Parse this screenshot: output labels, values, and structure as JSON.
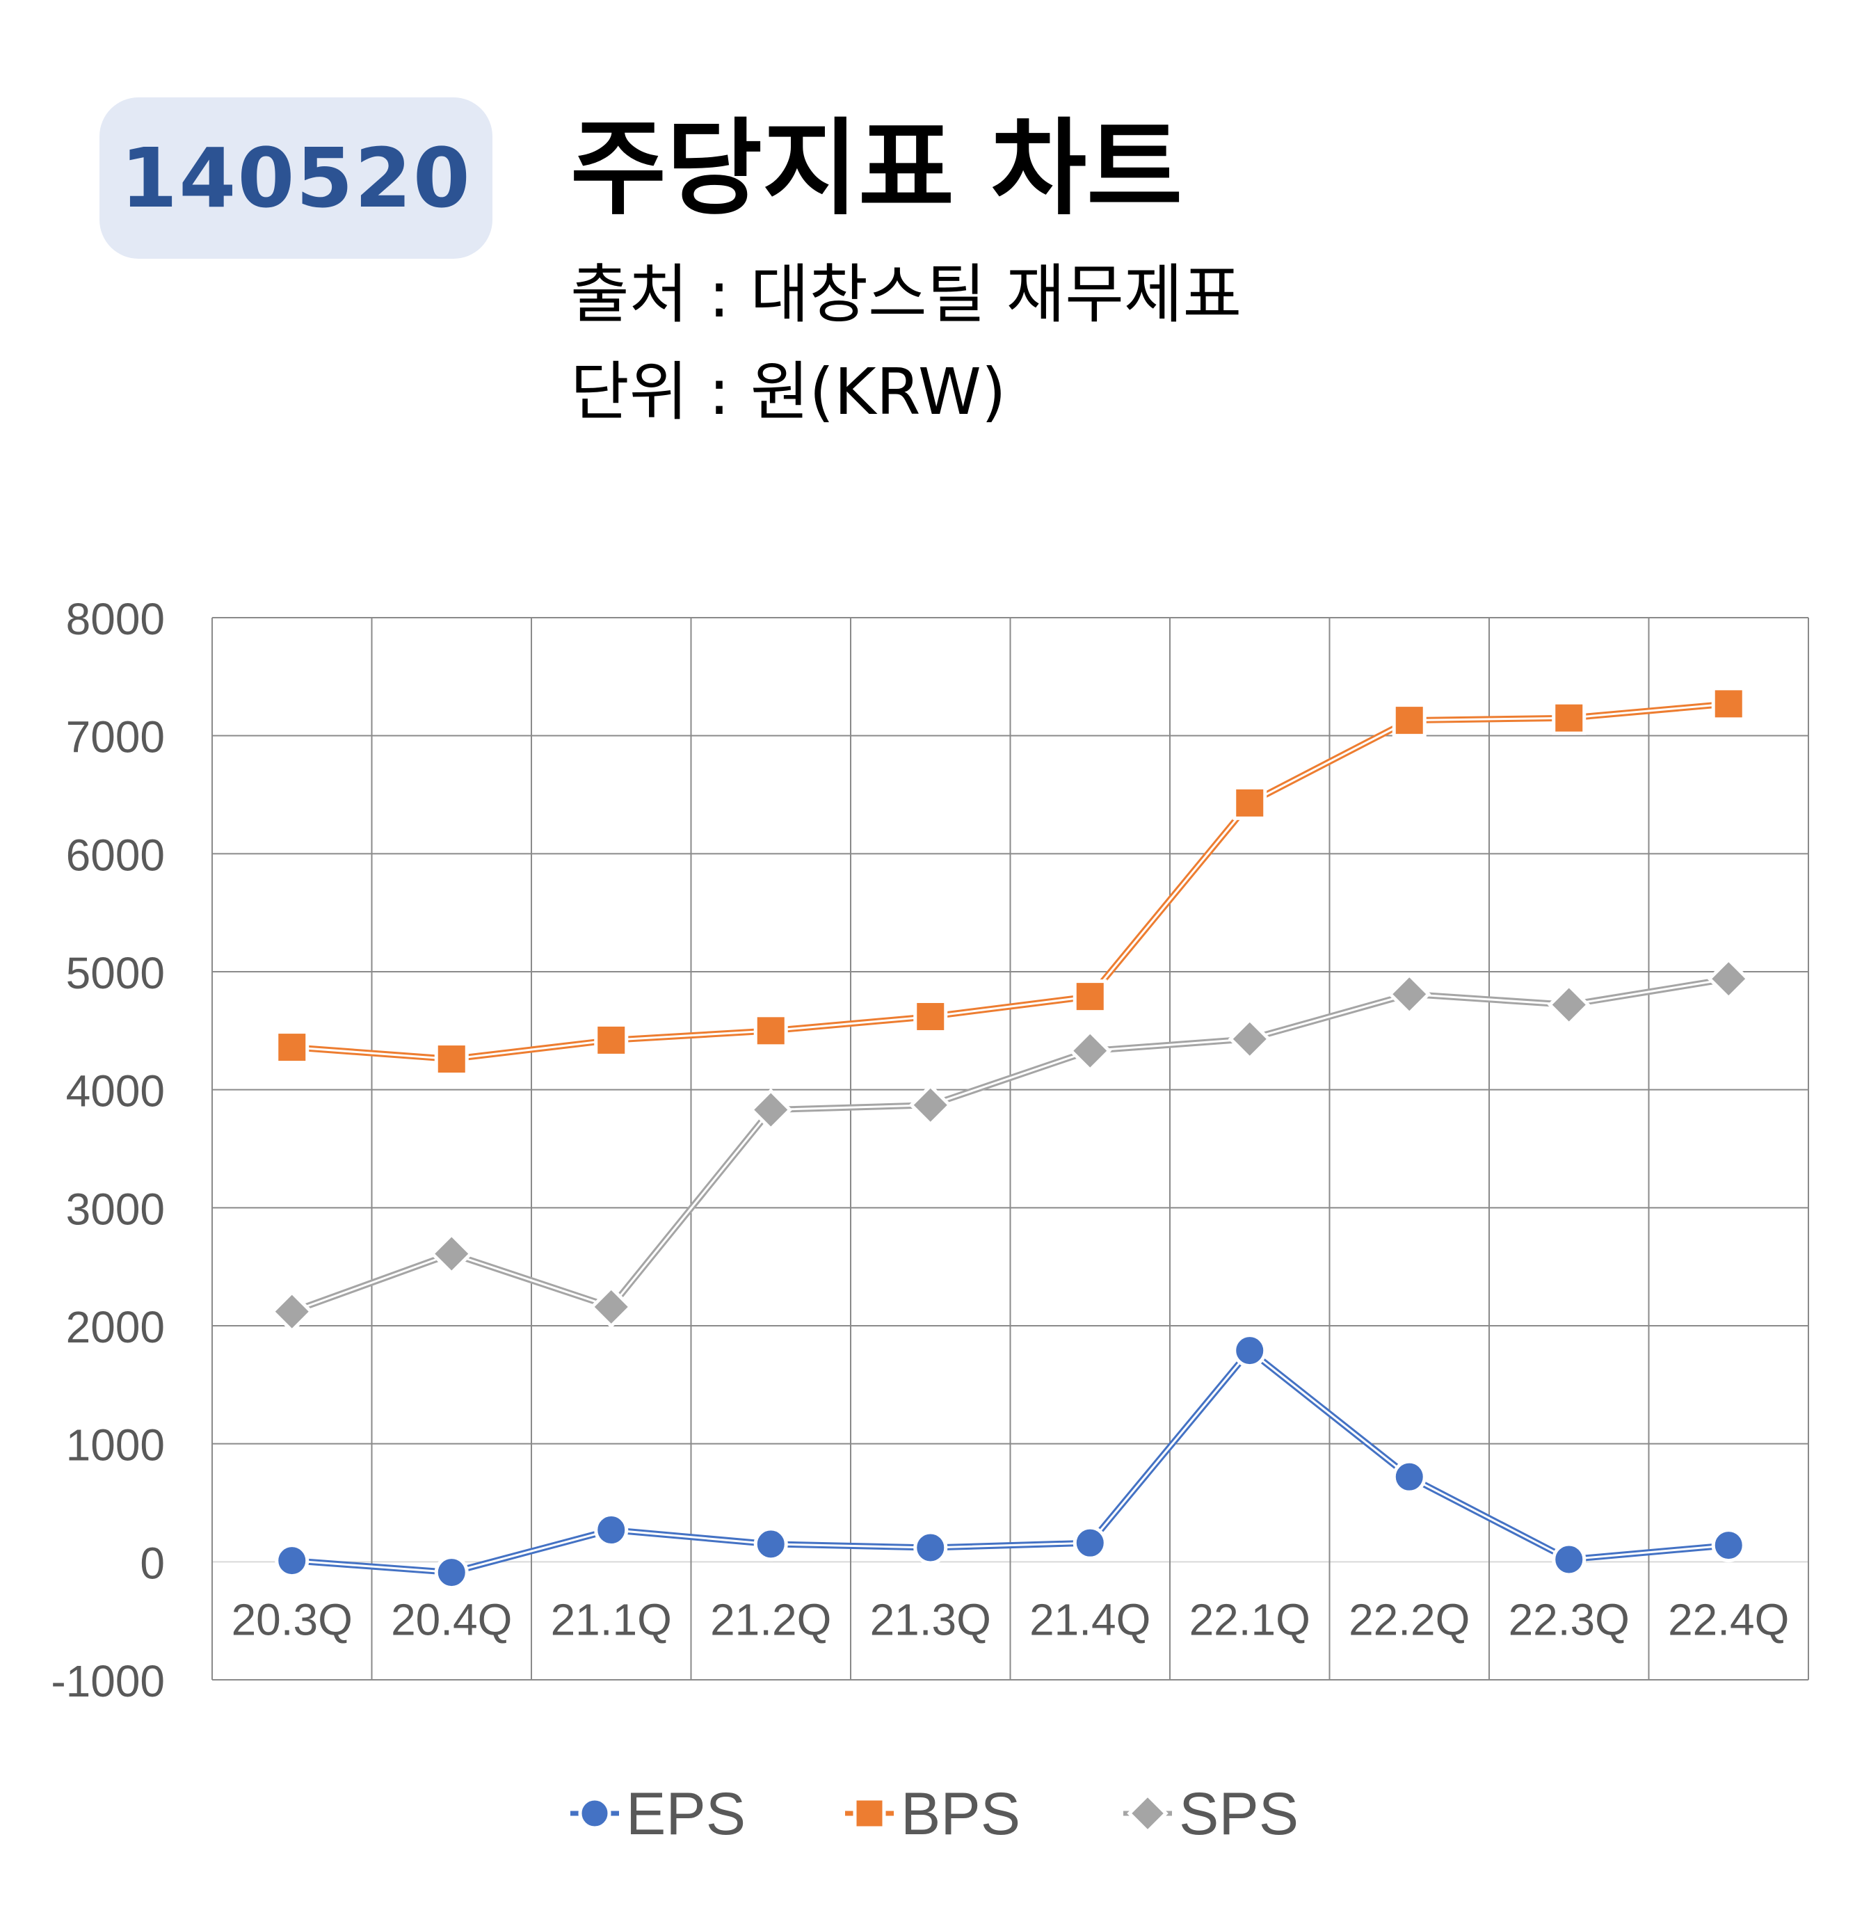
{
  "header": {
    "ticker": "140520",
    "title": "주당지표 차트",
    "source": "출처 : 대창스틸 재무제표",
    "unit": "단위 : 원(KRW)"
  },
  "chart_data": {
    "type": "line",
    "categories": [
      "20.3Q",
      "20.4Q",
      "21.1Q",
      "21.2Q",
      "21.3Q",
      "21.4Q",
      "22.1Q",
      "22.2Q",
      "22.3Q",
      "22.4Q"
    ],
    "ylim": [
      -1000,
      8000
    ],
    "yticks": [
      8000,
      7000,
      6000,
      5000,
      4000,
      3000,
      2000,
      1000,
      0,
      -1000
    ],
    "grid": true,
    "legend_position": "bottom",
    "series": [
      {
        "name": "EPS",
        "marker": "circle",
        "color": "#4472c4",
        "values": [
          10,
          -90,
          270,
          150,
          120,
          160,
          1790,
          720,
          20,
          140
        ]
      },
      {
        "name": "BPS",
        "marker": "square",
        "color": "#ed7d31",
        "values": [
          4360,
          4260,
          4420,
          4500,
          4620,
          4790,
          6430,
          7130,
          7150,
          7270
        ]
      },
      {
        "name": "SPS",
        "marker": "diamond",
        "color": "#a5a5a5",
        "values": [
          2120,
          2610,
          2160,
          3830,
          3870,
          4330,
          4430,
          4810,
          4720,
          4940
        ]
      }
    ]
  }
}
